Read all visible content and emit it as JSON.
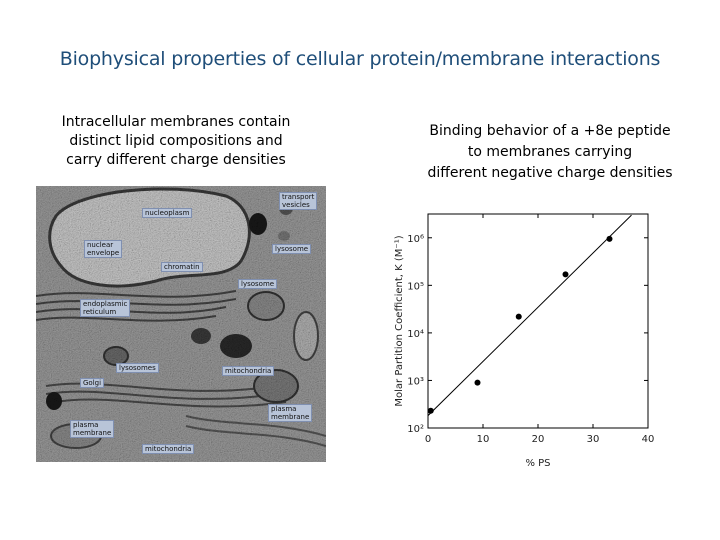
{
  "slide": {
    "title": "Biophysical properties of cellular protein/membrane interactions"
  },
  "left_panel": {
    "caption_lines": [
      "Intracellular membranes contain",
      "distinct lipid compositions and",
      "carry different charge densities"
    ],
    "micrograph_labels": {
      "nucleoplasm": "nucleoplasm",
      "transport_vesicles_1": "transport",
      "transport_vesicles_2": "vesicles",
      "nuclear_envelope_1": "nuclear",
      "nuclear_envelope_2": "envelope",
      "lysosome_1": "lysosome",
      "chromatin": "chromatin",
      "lysosome_2": "lysosome",
      "er_1": "endoplasmic",
      "er_2": "reticulum",
      "lysosomes": "lysosomes",
      "mitochondria_1": "mitochondria",
      "golgi": "Golgi",
      "plasma_membrane_right_1": "plasma",
      "plasma_membrane_right_2": "membrane",
      "plasma_membrane_left_1": "plasma",
      "plasma_membrane_left_2": "membrane",
      "mitochondria_2": "mitochondria"
    }
  },
  "right_panel": {
    "caption_lines": [
      "Binding behavior of a +8e peptide",
      "to membranes carrying",
      "different negative charge densities"
    ]
  },
  "chart_data": {
    "type": "scatter",
    "xlabel": "% PS",
    "ylabel": "Molar Partition Coefficient, K (M⁻¹)",
    "x_ticks": [
      "0",
      "10",
      "20",
      "30",
      "40"
    ],
    "y_ticks": [
      "10²",
      "10³",
      "10⁴",
      "10⁵",
      "10⁶"
    ],
    "xlim": [
      0,
      40
    ],
    "ylog10_lim": [
      2,
      6.5
    ],
    "y_scale": "log",
    "points": [
      {
        "x": 0.5,
        "y": 230
      },
      {
        "x": 9,
        "y": 900
      },
      {
        "x": 16.5,
        "y": 22000
      },
      {
        "x": 25,
        "y": 170000
      },
      {
        "x": 33,
        "y": 950000
      }
    ],
    "fit_line": {
      "x": [
        -1,
        37
      ],
      "y": [
        140,
        3000000
      ]
    },
    "grid": false,
    "legend": "none"
  }
}
